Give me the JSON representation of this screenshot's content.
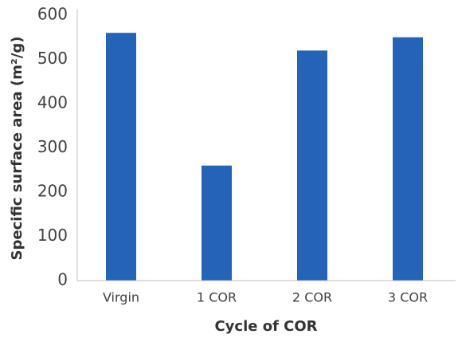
{
  "chart_data": {
    "type": "bar",
    "x_label": "Cycle of COR",
    "y_label": "Specific surface area (m²/g)",
    "categories": [
      "Virgin",
      "1 COR",
      "2 COR",
      "3 COR"
    ],
    "values": [
      560,
      260,
      520,
      550
    ],
    "color": "#2563b9",
    "ylim": [
      0,
      600
    ],
    "yticks": [
      0,
      100,
      200,
      300,
      400,
      500,
      600
    ],
    "grid": false
  }
}
